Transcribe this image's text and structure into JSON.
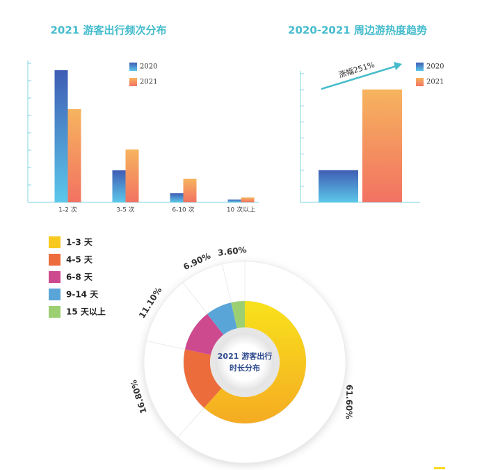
{
  "chart_data": [
    {
      "type": "bar",
      "title": "2021 游客出行频次分布",
      "categories": [
        "1-2 次",
        "3-5 次",
        "6-10 次",
        "10 次以上"
      ],
      "series": [
        {
          "name": "2020",
          "color": "#4a6fc0",
          "values": [
            7.6,
            1.84,
            0.52,
            0.16
          ]
        },
        {
          "name": "2021",
          "color": "#f4905e",
          "values": [
            5.36,
            3.04,
            1.36,
            0.28
          ]
        }
      ],
      "ylim": [
        0,
        8
      ],
      "yticks": [
        0,
        1,
        2,
        3,
        4,
        5,
        6,
        7,
        8
      ]
    },
    {
      "type": "bar",
      "title": "2020-2021 周边游热度趋势",
      "categories": [
        null
      ],
      "series": [
        {
          "name": "2020",
          "color": "#4a6fc0",
          "values": [
            2
          ]
        },
        {
          "name": "2021",
          "color": "#f4905e",
          "values": [
            7.02
          ]
        }
      ],
      "annotation": "涨幅251%",
      "ylim": [
        0,
        8
      ],
      "yticks": [
        0,
        1,
        2,
        3,
        4,
        5,
        6,
        7,
        8
      ]
    },
    {
      "type": "pie",
      "title_lines": [
        "2021 游客出行",
        "时长分布"
      ],
      "categories": [
        "1-3 天",
        "4-5 天",
        "6-8 天",
        "9-14 天",
        "15 天以上"
      ],
      "values": [
        61.6,
        16.8,
        11.1,
        6.9,
        3.6
      ],
      "value_labels": [
        "61.60%",
        "16.80%",
        "11.10%",
        "6.90%",
        "3.60%"
      ],
      "colors": [
        "#f7c81e",
        "#ec6c3c",
        "#cd4a8f",
        "#5aa5d8",
        "#9ccf72"
      ]
    }
  ]
}
